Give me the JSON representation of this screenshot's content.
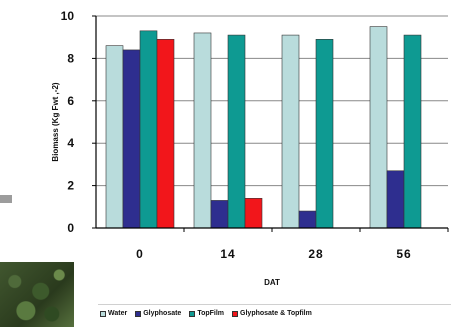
{
  "chart_data": {
    "type": "bar",
    "categories": [
      "0",
      "14",
      "28",
      "56"
    ],
    "series": [
      {
        "name": "Water",
        "color": "#b9dcdc",
        "values": [
          8.6,
          9.2,
          9.1,
          9.5
        ]
      },
      {
        "name": "Glyphosate",
        "color": "#2e2e8f",
        "values": [
          8.4,
          1.3,
          0.8,
          2.7
        ]
      },
      {
        "name": "TopFilm",
        "color": "#0e9a92",
        "values": [
          9.3,
          9.1,
          8.9,
          9.1
        ]
      },
      {
        "name": "Glyphosate & Topfilm",
        "color": "#f2161b",
        "values": [
          8.9,
          1.4,
          null,
          null
        ]
      }
    ],
    "title": "",
    "xlabel": "DAT",
    "ylabel": "Biomass (Kg Fwt ,-2)",
    "ylim": [
      0,
      10
    ],
    "yticks": [
      0,
      2,
      4,
      6,
      8,
      10
    ],
    "grid": true,
    "legend_position": "bottom"
  }
}
